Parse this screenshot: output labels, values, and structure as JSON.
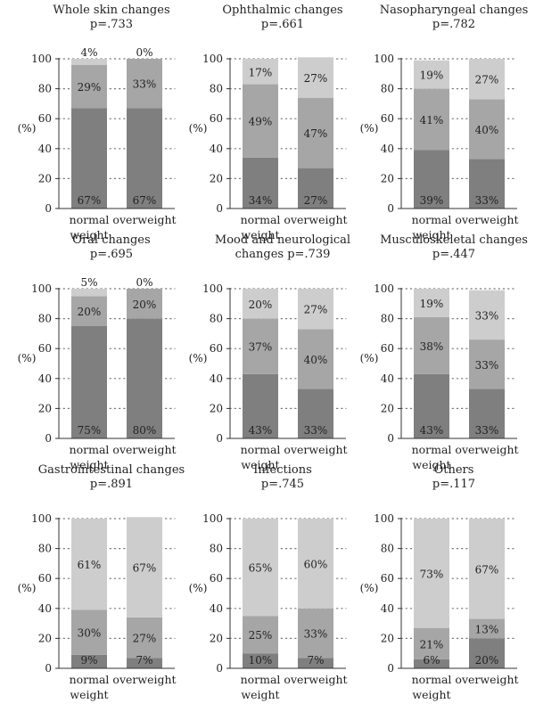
{
  "y_axis_label": "(%)",
  "colors": {
    "bottom": "#7f7f7f",
    "middle": "#a6a6a6",
    "top": "#cdcdcd",
    "grid": "#777777",
    "axis": "#333333"
  },
  "chart_data": [
    {
      "type": "bar",
      "stacked": true,
      "title": "Whole skin changes",
      "subtitle": "p=.733",
      "categories": [
        "normal weight",
        "overweight"
      ],
      "ylim": [
        0,
        100
      ],
      "yticks": [
        0,
        20,
        40,
        60,
        80,
        100
      ],
      "ylabel": "(%)",
      "series": [
        {
          "values": [
            67,
            67
          ]
        },
        {
          "values": [
            29,
            33
          ]
        },
        {
          "values": [
            4,
            0
          ]
        }
      ]
    },
    {
      "type": "bar",
      "stacked": true,
      "title": "Ophthalmic changes",
      "subtitle": "p=.661",
      "categories": [
        "normal weight",
        "overweight"
      ],
      "ylim": [
        0,
        100
      ],
      "yticks": [
        0,
        20,
        40,
        60,
        80,
        100
      ],
      "ylabel": "(%)",
      "series": [
        {
          "values": [
            34,
            27
          ]
        },
        {
          "values": [
            49,
            47
          ]
        },
        {
          "values": [
            17,
            27
          ]
        }
      ]
    },
    {
      "type": "bar",
      "stacked": true,
      "title": "Nasopharyngeal changes",
      "subtitle": "p=.782",
      "categories": [
        "normal weight",
        "overweight"
      ],
      "ylim": [
        0,
        100
      ],
      "yticks": [
        0,
        20,
        40,
        60,
        80,
        100
      ],
      "ylabel": "(%)",
      "series": [
        {
          "values": [
            39,
            33
          ]
        },
        {
          "values": [
            41,
            40
          ]
        },
        {
          "values": [
            19,
            27
          ]
        }
      ]
    },
    {
      "type": "bar",
      "stacked": true,
      "title": "Oral changes",
      "subtitle": "p=.695",
      "categories": [
        "normal weight",
        "overweight"
      ],
      "ylim": [
        0,
        100
      ],
      "yticks": [
        0,
        20,
        40,
        60,
        80,
        100
      ],
      "ylabel": "(%)",
      "series": [
        {
          "values": [
            75,
            80
          ]
        },
        {
          "values": [
            20,
            20
          ]
        },
        {
          "values": [
            5,
            0
          ]
        }
      ]
    },
    {
      "type": "bar",
      "stacked": true,
      "title": "Mood and neurological",
      "subtitle": "changes p=.739",
      "categories": [
        "normal weight",
        "overweight"
      ],
      "ylim": [
        0,
        100
      ],
      "yticks": [
        0,
        20,
        40,
        60,
        80,
        100
      ],
      "ylabel": "(%)",
      "series": [
        {
          "values": [
            43,
            33
          ]
        },
        {
          "values": [
            37,
            40
          ]
        },
        {
          "values": [
            20,
            27
          ]
        }
      ]
    },
    {
      "type": "bar",
      "stacked": true,
      "title": "Musculoskeletal changes",
      "subtitle": "p=.447",
      "categories": [
        "normal weight",
        "overweight"
      ],
      "ylim": [
        0,
        100
      ],
      "yticks": [
        0,
        20,
        40,
        60,
        80,
        100
      ],
      "ylabel": "(%)",
      "series": [
        {
          "values": [
            43,
            33
          ]
        },
        {
          "values": [
            38,
            33
          ]
        },
        {
          "values": [
            19,
            33
          ]
        }
      ]
    },
    {
      "type": "bar",
      "stacked": true,
      "title": "Gastrointestinal changes",
      "subtitle": "p=.891",
      "categories": [
        "normal weight",
        "overweight"
      ],
      "ylim": [
        0,
        100
      ],
      "yticks": [
        0,
        20,
        40,
        60,
        80,
        100
      ],
      "ylabel": "(%)",
      "series": [
        {
          "values": [
            9,
            7
          ]
        },
        {
          "values": [
            30,
            27
          ]
        },
        {
          "values": [
            61,
            67
          ]
        }
      ]
    },
    {
      "type": "bar",
      "stacked": true,
      "title": "Infections",
      "subtitle": "p=.745",
      "categories": [
        "normal weight",
        "overweight"
      ],
      "ylim": [
        0,
        100
      ],
      "yticks": [
        0,
        20,
        40,
        60,
        80,
        100
      ],
      "ylabel": "(%)",
      "series": [
        {
          "values": [
            10,
            7
          ]
        },
        {
          "values": [
            25,
            33
          ]
        },
        {
          "values": [
            65,
            60
          ]
        }
      ]
    },
    {
      "type": "bar",
      "stacked": true,
      "title": "Others",
      "subtitle": "p=.117",
      "categories": [
        "normal weight",
        "overweight"
      ],
      "ylim": [
        0,
        100
      ],
      "yticks": [
        0,
        20,
        40,
        60,
        80,
        100
      ],
      "ylabel": "(%)",
      "series": [
        {
          "values": [
            6,
            20
          ]
        },
        {
          "values": [
            21,
            13
          ]
        },
        {
          "values": [
            73,
            67
          ]
        }
      ]
    }
  ]
}
